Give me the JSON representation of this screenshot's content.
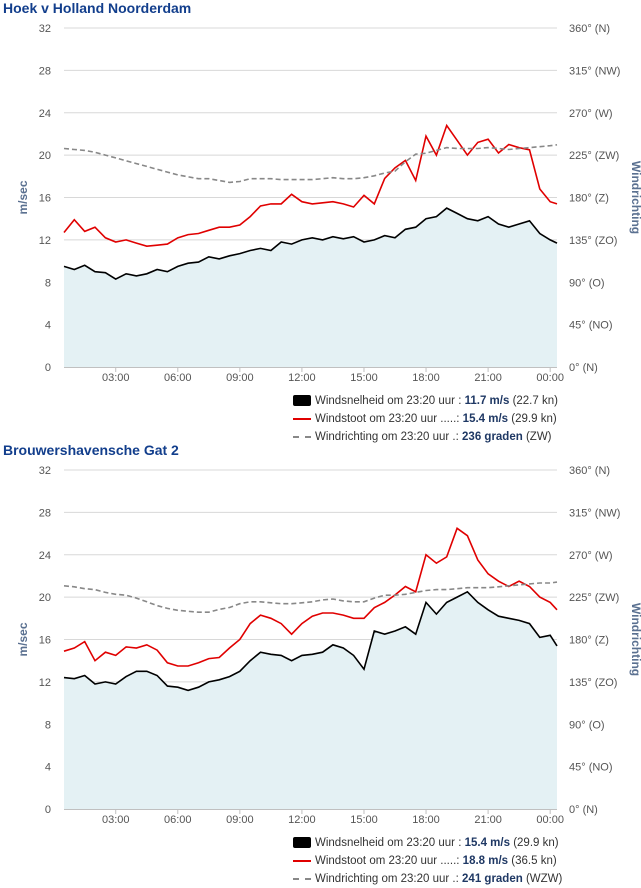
{
  "colors": {
    "title": "#123e8c",
    "speed": "#000000",
    "gust": "#e00000",
    "direction": "#888888",
    "area_fill": "#e4f1f4",
    "grid": "#d8d8d8",
    "axis_label": "#5a7090"
  },
  "panels": [
    {
      "title": "Hoek v Holland Noorderdam",
      "legend": [
        {
          "icon": "black-box",
          "label": "Windsnelheid om 23:20 uur :",
          "value": "11.7 m/s",
          "extra": "(22.7 kn)"
        },
        {
          "icon": "red-line",
          "label": "Windstoot om 23:20 uur .....:",
          "value": "15.4 m/s",
          "extra": "(29.9 kn)"
        },
        {
          "icon": "gray-dash",
          "label": "Windrichting om 23:20 uur .:",
          "value": "236 graden",
          "extra": "(ZW)"
        }
      ]
    },
    {
      "title": "Brouwershavensche Gat 2",
      "legend": [
        {
          "icon": "black-box",
          "label": "Windsnelheid om 23:20 uur :",
          "value": "15.4 m/s",
          "extra": "(29.9 kn)"
        },
        {
          "icon": "red-line",
          "label": "Windstoot om 23:20 uur .....:",
          "value": "18.8 m/s",
          "extra": "(36.5 kn)"
        },
        {
          "icon": "gray-dash",
          "label": "Windrichting om 23:20 uur .:",
          "value": "241 graden",
          "extra": "(WZW)"
        }
      ]
    }
  ],
  "chart_data": [
    {
      "type": "line",
      "title": "Hoek v Holland Noorderdam",
      "ylabel": "m/sec",
      "y2label": "Windrichting",
      "ylim": [
        0,
        32
      ],
      "y2lim": [
        0,
        360
      ],
      "yticks": [
        "0",
        "4",
        "8",
        "12",
        "16",
        "20",
        "24",
        "28",
        "32"
      ],
      "y2ticks": [
        "0° (N)",
        "45° (NO)",
        "90° (O)",
        "135° (ZO)",
        "180° (Z)",
        "225° (ZW)",
        "270° (W)",
        "315° (NW)",
        "360° (N)"
      ],
      "xticks": [
        "03:00",
        "06:00",
        "09:00",
        "12:00",
        "15:00",
        "18:00",
        "21:00",
        "00:00"
      ],
      "xtick_hours": [
        3,
        6,
        9,
        12,
        15,
        18,
        21,
        24
      ],
      "xlim_hours": [
        0.5,
        24.33
      ],
      "grid": true,
      "legend_position": "bottom-right",
      "series": [
        {
          "name": "Windsnelheid",
          "style": "area",
          "x_hours": [
            0.5,
            1,
            1.5,
            2,
            2.5,
            3,
            3.5,
            4,
            4.5,
            5,
            5.5,
            6,
            6.5,
            7,
            7.5,
            8,
            8.5,
            9,
            9.5,
            10,
            10.5,
            11,
            11.5,
            12,
            12.5,
            13,
            13.5,
            14,
            14.5,
            15,
            15.5,
            16,
            16.5,
            17,
            17.5,
            18,
            18.5,
            19,
            19.5,
            20,
            20.5,
            21,
            21.5,
            22,
            22.5,
            23,
            23.5,
            24,
            24.33
          ],
          "values": [
            9.5,
            9.2,
            9.6,
            9.0,
            8.9,
            8.3,
            8.8,
            8.6,
            8.8,
            9.2,
            9.0,
            9.5,
            9.8,
            9.9,
            10.4,
            10.2,
            10.5,
            10.7,
            11.0,
            11.2,
            11.0,
            11.8,
            11.6,
            12.0,
            12.2,
            12.0,
            12.3,
            12.1,
            12.3,
            11.8,
            12.0,
            12.4,
            12.2,
            13.0,
            13.2,
            14.0,
            14.2,
            15.0,
            14.5,
            14.0,
            13.8,
            14.2,
            13.5,
            13.2,
            13.5,
            13.8,
            12.6,
            12.0,
            11.7
          ]
        },
        {
          "name": "Windstoot",
          "style": "line",
          "x_hours": [
            0.5,
            1,
            1.5,
            2,
            2.5,
            3,
            3.5,
            4,
            4.5,
            5,
            5.5,
            6,
            6.5,
            7,
            7.5,
            8,
            8.5,
            9,
            9.5,
            10,
            10.5,
            11,
            11.5,
            12,
            12.5,
            13,
            13.5,
            14,
            14.5,
            15,
            15.5,
            16,
            16.5,
            17,
            17.5,
            18,
            18.5,
            19,
            19.5,
            20,
            20.5,
            21,
            21.5,
            22,
            22.5,
            23,
            23.5,
            24,
            24.33
          ],
          "values": [
            12.7,
            13.9,
            12.8,
            13.2,
            12.2,
            11.8,
            12.0,
            11.7,
            11.4,
            11.5,
            11.6,
            12.2,
            12.5,
            12.6,
            12.9,
            13.2,
            13.2,
            13.4,
            14.2,
            15.2,
            15.4,
            15.4,
            16.3,
            15.6,
            15.4,
            15.5,
            15.6,
            15.4,
            15.1,
            16.2,
            15.4,
            17.8,
            18.8,
            19.5,
            17.6,
            21.8,
            20.0,
            22.8,
            21.4,
            20.0,
            21.2,
            21.5,
            20.2,
            21.0,
            20.7,
            20.5,
            16.8,
            15.6,
            15.4
          ]
        },
        {
          "name": "Windrichting",
          "style": "dashed",
          "axis": "right",
          "x_hours": [
            0.5,
            1,
            1.5,
            2,
            2.5,
            3,
            3.5,
            4,
            4.5,
            5,
            5.5,
            6,
            6.5,
            7,
            7.5,
            8,
            8.5,
            9,
            9.5,
            10,
            10.5,
            11,
            11.5,
            12,
            12.5,
            13,
            13.5,
            14,
            14.5,
            15,
            15.5,
            16,
            16.5,
            17,
            17.5,
            18,
            18.5,
            19,
            19.5,
            20,
            20.5,
            21,
            21.5,
            22,
            22.5,
            23,
            23.5,
            24,
            24.33
          ],
          "values": [
            232,
            231,
            230,
            228,
            225,
            222,
            219,
            216,
            213,
            210,
            207,
            204,
            202,
            200,
            200,
            198,
            196,
            197,
            200,
            200,
            200,
            199,
            199,
            199,
            199,
            200,
            201,
            200,
            200,
            201,
            203,
            206,
            208,
            218,
            226,
            227,
            230,
            233,
            232,
            232,
            232,
            233,
            232,
            231,
            232,
            233,
            234,
            235,
            236
          ]
        }
      ]
    },
    {
      "type": "line",
      "title": "Brouwershavensche Gat 2",
      "ylabel": "m/sec",
      "y2label": "Windrichting",
      "ylim": [
        0,
        32
      ],
      "y2lim": [
        0,
        360
      ],
      "yticks": [
        "0",
        "4",
        "8",
        "12",
        "16",
        "20",
        "24",
        "28",
        "32"
      ],
      "y2ticks": [
        "0° (N)",
        "45° (NO)",
        "90° (O)",
        "135° (ZO)",
        "180° (Z)",
        "225° (ZW)",
        "270° (W)",
        "315° (NW)",
        "360° (N)"
      ],
      "xticks": [
        "03:00",
        "06:00",
        "09:00",
        "12:00",
        "15:00",
        "18:00",
        "21:00",
        "00:00"
      ],
      "xtick_hours": [
        3,
        6,
        9,
        12,
        15,
        18,
        21,
        24
      ],
      "xlim_hours": [
        0.5,
        24.33
      ],
      "grid": true,
      "legend_position": "bottom-right",
      "series": [
        {
          "name": "Windsnelheid",
          "style": "area",
          "x_hours": [
            0.5,
            1,
            1.5,
            2,
            2.5,
            3,
            3.5,
            4,
            4.5,
            5,
            5.5,
            6,
            6.5,
            7,
            7.5,
            8,
            8.5,
            9,
            9.5,
            10,
            10.5,
            11,
            11.5,
            12,
            12.5,
            13,
            13.5,
            14,
            14.5,
            15,
            15.5,
            16,
            16.5,
            17,
            17.5,
            18,
            18.5,
            19,
            19.5,
            20,
            20.5,
            21,
            21.5,
            22,
            22.5,
            23,
            23.5,
            24,
            24.33
          ],
          "values": [
            12.4,
            12.3,
            12.6,
            11.8,
            12.0,
            11.8,
            12.5,
            13.0,
            13.0,
            12.6,
            11.6,
            11.5,
            11.2,
            11.5,
            12.0,
            12.2,
            12.5,
            13.0,
            14.0,
            14.8,
            14.6,
            14.5,
            14.0,
            14.5,
            14.6,
            14.8,
            15.5,
            15.2,
            14.5,
            13.2,
            16.8,
            16.5,
            16.8,
            17.2,
            16.5,
            19.5,
            18.4,
            19.5,
            20.0,
            20.5,
            19.5,
            18.8,
            18.2,
            18.0,
            17.8,
            17.5,
            16.2,
            16.4,
            15.4
          ]
        },
        {
          "name": "Windstoot",
          "style": "line",
          "x_hours": [
            0.5,
            1,
            1.5,
            2,
            2.5,
            3,
            3.5,
            4,
            4.5,
            5,
            5.5,
            6,
            6.5,
            7,
            7.5,
            8,
            8.5,
            9,
            9.5,
            10,
            10.5,
            11,
            11.5,
            12,
            12.5,
            13,
            13.5,
            14,
            14.5,
            15,
            15.5,
            16,
            16.5,
            17,
            17.5,
            18,
            18.5,
            19,
            19.5,
            20,
            20.5,
            21,
            21.5,
            22,
            22.5,
            23,
            23.5,
            24,
            24.33
          ],
          "values": [
            14.9,
            15.2,
            15.8,
            14.0,
            14.8,
            14.5,
            15.3,
            15.2,
            15.5,
            15.0,
            13.8,
            13.5,
            13.5,
            13.8,
            14.2,
            14.3,
            15.2,
            16.0,
            17.5,
            18.3,
            18.0,
            17.5,
            16.5,
            17.5,
            18.2,
            18.5,
            18.5,
            18.3,
            18.0,
            18.0,
            19.0,
            19.5,
            20.2,
            21.0,
            20.5,
            24.0,
            23.2,
            23.8,
            26.5,
            25.8,
            23.5,
            22.2,
            21.5,
            21.0,
            21.5,
            21.0,
            20.0,
            19.5,
            18.8
          ]
        },
        {
          "name": "Windrichting",
          "style": "dashed",
          "axis": "right",
          "x_hours": [
            0.5,
            1,
            1.5,
            2,
            2.5,
            3,
            3.5,
            4,
            4.5,
            5,
            5.5,
            6,
            6.5,
            7,
            7.5,
            8,
            8.5,
            9,
            9.5,
            10,
            10.5,
            11,
            11.5,
            12,
            12.5,
            13,
            13.5,
            14,
            14.5,
            15,
            15.5,
            16,
            16.5,
            17,
            17.5,
            18,
            18.5,
            19,
            19.5,
            20,
            20.5,
            21,
            21.5,
            22,
            22.5,
            23,
            23.5,
            24,
            24.33
          ],
          "values": [
            237,
            236,
            234,
            233,
            230,
            228,
            227,
            224,
            220,
            216,
            213,
            211,
            210,
            209,
            209,
            212,
            214,
            218,
            220,
            220,
            219,
            218,
            218,
            219,
            220,
            222,
            223,
            221,
            220,
            220,
            224,
            227,
            227,
            228,
            230,
            232,
            233,
            233,
            234,
            235,
            235,
            235,
            236,
            237,
            238,
            239,
            240,
            240,
            241
          ]
        }
      ]
    }
  ]
}
